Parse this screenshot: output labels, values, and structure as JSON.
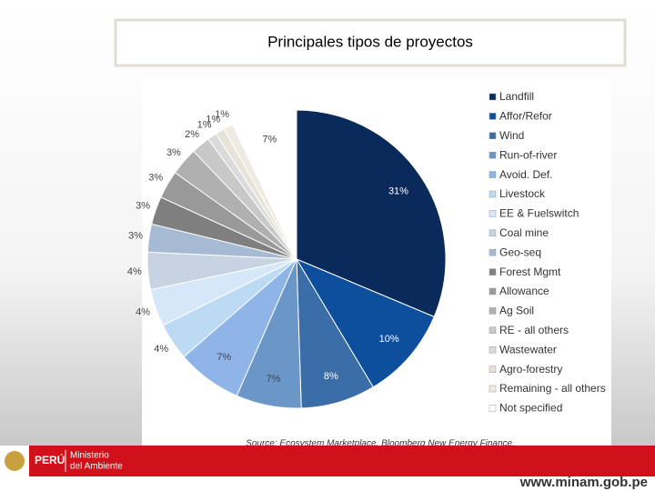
{
  "chart_data": {
    "type": "pie",
    "title": "Principales tipos de proyectos",
    "categories": [
      "Landfill",
      "Affor/Refor",
      "Wind",
      "Run-of-river",
      "Avoid. Def.",
      "Livestock",
      "EE & Fuelswitch",
      "Coal mine",
      "Geo-seq",
      "Forest Mgmt",
      "Allowance",
      "Ag Soil",
      "RE - all others",
      "Wastewater",
      "Agro-forestry",
      "Remaining - all others",
      "Not specified"
    ],
    "values": [
      31,
      10,
      8,
      7,
      7,
      4,
      4,
      4,
      3,
      3,
      3,
      3,
      2,
      1,
      1,
      1,
      7
    ],
    "value_labels": [
      "31%",
      "10%",
      "8%",
      "7%",
      "7%",
      "4%",
      "4%",
      "4%",
      "3%",
      "3%",
      "3%",
      "3%",
      "2%",
      "1%",
      "1%",
      "1%",
      "7%"
    ],
    "colors": [
      "#0b2a5c",
      "#0d4f9c",
      "#3b6ea8",
      "#6a96c8",
      "#8fb5e8",
      "#bcdaf4",
      "#d6e7f9",
      "#c7d3e3",
      "#a7bad3",
      "#7f7f7f",
      "#999999",
      "#b0b0b0",
      "#c8c8c8",
      "#dadada",
      "#e8e3d9",
      "#efebe2",
      "#ffffff"
    ],
    "source": "Source: Ecosystem Marketplace, Bloomberg New Energy Finance."
  },
  "footer": {
    "country": "PERÚ",
    "ministry_line1": "Ministerio",
    "ministry_line2": "del Ambiente",
    "url": "www.minam.gob.pe"
  }
}
